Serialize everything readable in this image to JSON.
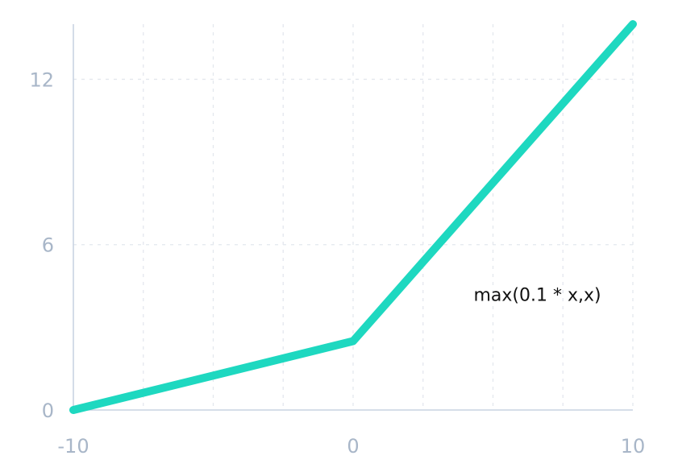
{
  "chart_data": {
    "type": "line",
    "title": "",
    "xlabel": "",
    "ylabel": "",
    "x_ticks": [
      -10,
      0,
      10
    ],
    "x_tick_labels": [
      "-10",
      "0",
      "10"
    ],
    "y_ticks": [
      0,
      6,
      12
    ],
    "y_tick_labels": [
      "0",
      "6",
      "12"
    ],
    "xlim": [
      -10,
      10
    ],
    "ylim": [
      0,
      14
    ],
    "grid": true,
    "grid_x": [
      -10,
      -7.5,
      -5,
      -2.5,
      0,
      2.5,
      5,
      7.5,
      10
    ],
    "grid_y": [
      0,
      6,
      12
    ],
    "series": [
      {
        "x": [
          -10,
          0,
          10
        ],
        "y": [
          0,
          2.5,
          14
        ],
        "color": "#1ed8c0"
      }
    ],
    "annotations": [
      {
        "text": "max(0.1 * x,x)",
        "x": 6.5,
        "y": 4.2
      }
    ],
    "colors": {
      "line": "#1ed8c0",
      "axis": "#c9d4e2",
      "grid": "#e3e7ee",
      "tick_label": "#a8b6c8",
      "annotation": "#111111"
    }
  }
}
